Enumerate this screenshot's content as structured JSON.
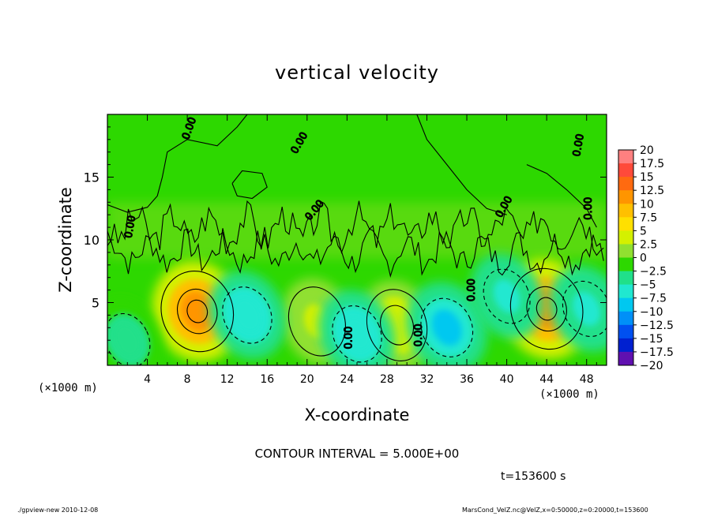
{
  "chart_data": {
    "type": "heatmap",
    "title": "vertical velocity",
    "xlabel": "X-coordinate",
    "ylabel": "Z-coordinate",
    "x_unit_label": "(×1000 m)",
    "xlim": [
      0,
      50
    ],
    "ylim": [
      0,
      20
    ],
    "x_ticks": [
      "4",
      "8",
      "12",
      "16",
      "20",
      "24",
      "28",
      "32",
      "36",
      "40",
      "44",
      "48"
    ],
    "y_ticks": [
      "5",
      "10",
      "15"
    ],
    "colorbar": {
      "labels": [
        "20",
        "17.5",
        "15",
        "12.5",
        "10",
        "7.5",
        "5",
        "2.5",
        "0",
        "-2.5",
        "-5",
        "-7.5",
        "-10",
        "-12.5",
        "-15",
        "-17.5",
        "-20"
      ],
      "colors": [
        "#ff8080",
        "#ff4a3a",
        "#ff6a10",
        "#ff9500",
        "#ffc000",
        "#ffe000",
        "#d4f000",
        "#90e030",
        "#2dd800",
        "#20e08a",
        "#20e8d0",
        "#00c8f0",
        "#0090f8",
        "#0050f0",
        "#0020d0",
        "#2010a0",
        "#6010b0"
      ]
    },
    "features": [
      {
        "x": 9,
        "z": 4.3,
        "value": 13,
        "label": "updraft"
      },
      {
        "x": 44,
        "z": 4.5,
        "value": 13,
        "label": "updraft"
      },
      {
        "x": 29,
        "z": 3.2,
        "value": 6,
        "label": "updraft"
      },
      {
        "x": 21,
        "z": 3.5,
        "value": 4,
        "label": "updraft"
      },
      {
        "x": 14,
        "z": 4.0,
        "value": -6,
        "label": "downdraft"
      },
      {
        "x": 34,
        "z": 3.0,
        "value": -8,
        "label": "downdraft"
      },
      {
        "x": 25,
        "z": 2.5,
        "value": -6,
        "label": "downdraft"
      },
      {
        "x": 40,
        "z": 5.5,
        "value": -4,
        "label": "downdraft"
      },
      {
        "x": 48,
        "z": 4.5,
        "value": -5,
        "label": "downdraft"
      },
      {
        "x": 2,
        "z": 2.0,
        "value": -3,
        "label": "downdraft"
      }
    ],
    "contour_labels": [
      "0.00",
      "0.00",
      "0.00",
      "0.00",
      "0.00",
      "0.00",
      "0.00",
      "0.00",
      "0.00",
      "0.00"
    ],
    "contour_interval": "CONTOUR INTERVAL = 5.000E+00",
    "time": "t=153600 s"
  },
  "footer": {
    "left": "./gpview-new   2010-12-08",
    "right": "MarsCond_VelZ.nc@VelZ,x=0:50000,z=0:20000,t=153600"
  }
}
